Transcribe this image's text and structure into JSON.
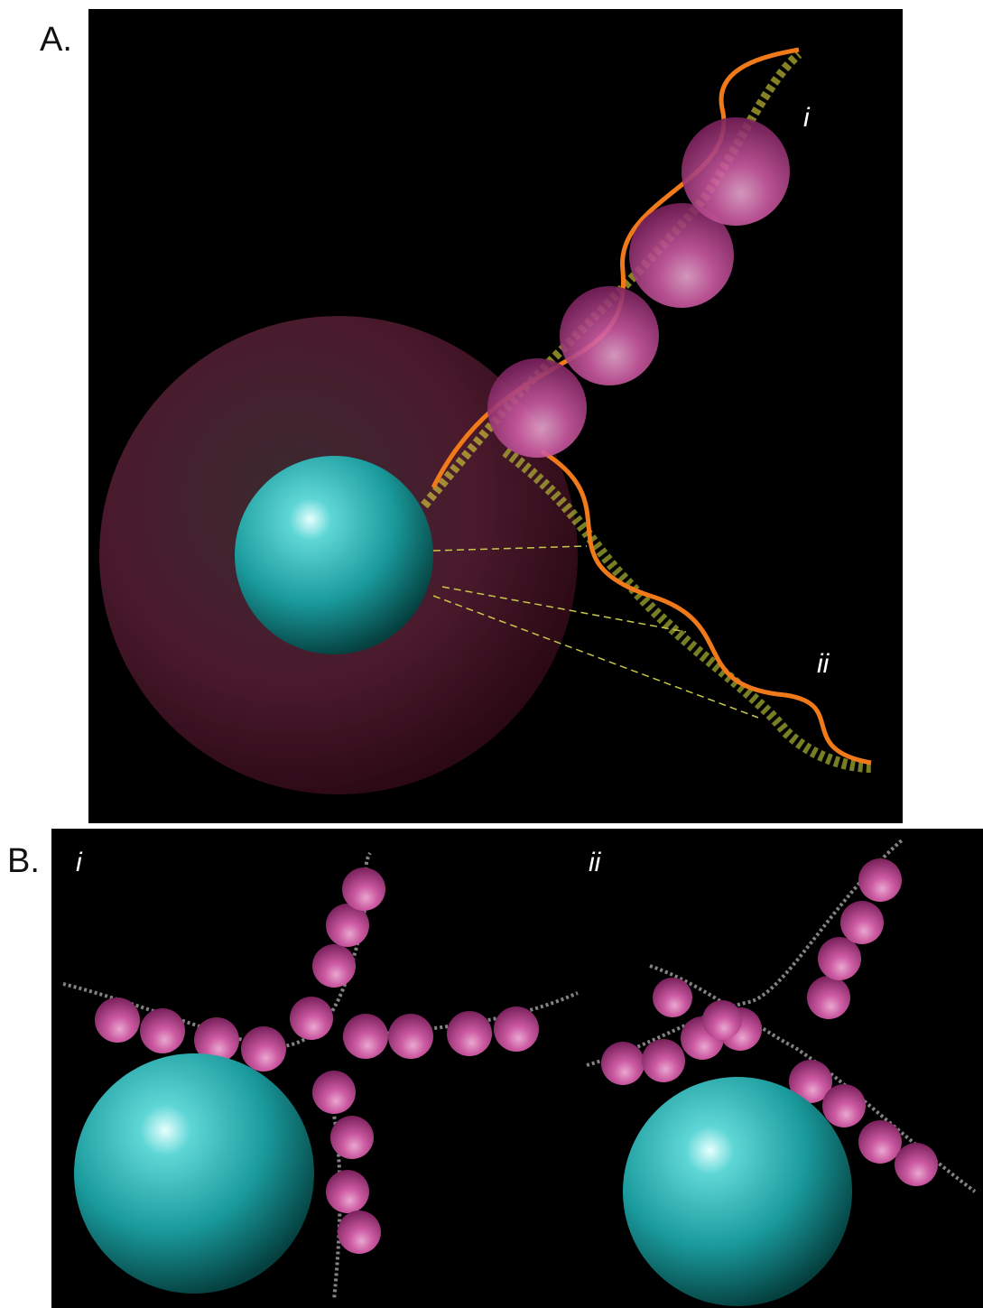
{
  "panels": [
    {
      "label": "A.",
      "sublabels": [
        "i",
        "ii"
      ]
    },
    {
      "label": "B.",
      "sublabels": [
        "i",
        "ii"
      ]
    }
  ]
}
